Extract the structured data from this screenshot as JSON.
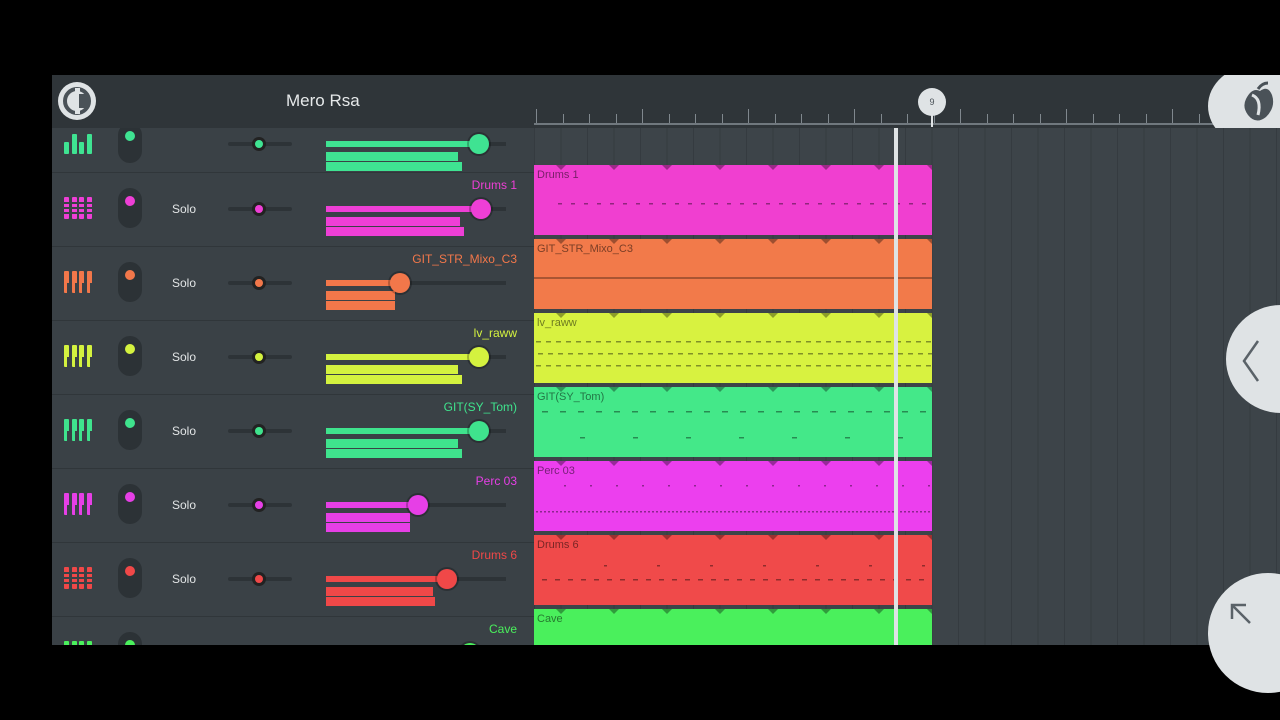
{
  "app": {
    "project_title": "Mero Rsa",
    "logo_icon": "fl-studio-logo-icon",
    "fl_button_icon": "fl-fruit-icon"
  },
  "timeline": {
    "marker_label": "9"
  },
  "channels": [
    {
      "name": "",
      "color": "#3fe392",
      "solo_label": "",
      "icon": "mixer-bars-icon",
      "volume": 0.85
    },
    {
      "name": "Drums 1",
      "color": "#ee3fd6",
      "solo_label": "Solo",
      "icon": "drum-grid-icon",
      "volume": 0.86
    },
    {
      "name": "GIT_STR_Mixo_C3",
      "color": "#f2774a",
      "solo_label": "Solo",
      "icon": "keyboard-icon",
      "volume": 0.41
    },
    {
      "name": "lv_raww",
      "color": "#d4f23f",
      "solo_label": "Solo",
      "icon": "keyboard-icon",
      "volume": 0.85
    },
    {
      "name": "GIT(SY_Tom)",
      "color": "#3fe38d",
      "solo_label": "Solo",
      "icon": "keyboard-icon",
      "volume": 0.85
    },
    {
      "name": "Perc 03",
      "color": "#e63fe6",
      "solo_label": "Solo",
      "icon": "keyboard-icon",
      "volume": 0.51
    },
    {
      "name": "Drums 6",
      "color": "#f04848",
      "solo_label": "Solo",
      "icon": "drum-grid-icon",
      "volume": 0.67
    },
    {
      "name": "Cave",
      "color": "#4af05c",
      "solo_label": "",
      "icon": "keyboard-icon",
      "volume": 0.8
    }
  ],
  "clips": [
    {
      "label": "",
      "color": "#3d4449"
    },
    {
      "label": "Drums 1",
      "color": "#f03fd0"
    },
    {
      "label": "GIT_STR_Mixo_C3",
      "color": "#f27a4a"
    },
    {
      "label": "lv_raww",
      "color": "#d8f240"
    },
    {
      "label": "GIT(SY_Tom)",
      "color": "#44e889"
    },
    {
      "label": "Perc 03",
      "color": "#ec3fee"
    },
    {
      "label": "Drums 6",
      "color": "#f04a4a"
    },
    {
      "label": "Cave",
      "color": "#4af05c"
    }
  ],
  "nav": {
    "back_icon": "chevron-left-icon",
    "expand_icon": "arrow-up-left-icon"
  }
}
